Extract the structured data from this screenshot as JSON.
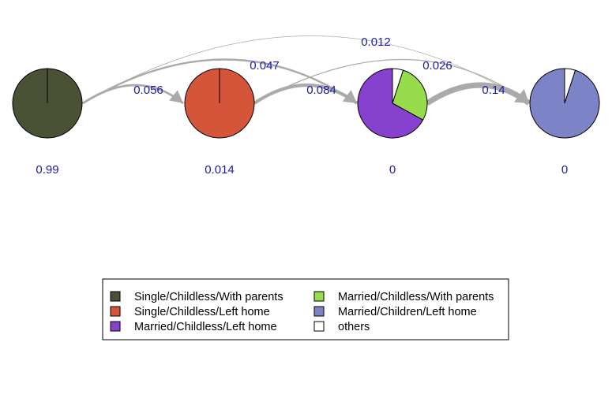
{
  "colors": {
    "single_childless_with_parents": "#4a5236",
    "single_childless_left_home": "#d5553b",
    "married_childless_left_home": "#8741cf",
    "married_childless_with_parents": "#96dc4c",
    "married_children_left_home": "#7d83c7",
    "others": "#ffffff",
    "edge": "#aaaaaa",
    "label": "#1a1aa6"
  },
  "nodes": [
    {
      "id": "n1",
      "stay_label": "0.99",
      "slices": [
        {
          "state": "Single/Childless/With parents",
          "share": 1.0,
          "color_key": "single_childless_with_parents"
        }
      ]
    },
    {
      "id": "n2",
      "stay_label": "0.014",
      "slices": [
        {
          "state": "Single/Childless/Left home",
          "share": 1.0,
          "color_key": "single_childless_left_home"
        }
      ]
    },
    {
      "id": "n3",
      "stay_label": "0",
      "slices": [
        {
          "state": "others",
          "share": 0.05,
          "color_key": "others"
        },
        {
          "state": "Married/Childless/With parents",
          "share": 0.28,
          "color_key": "married_childless_with_parents"
        },
        {
          "state": "Married/Childless/Left home",
          "share": 0.67,
          "color_key": "married_childless_left_home"
        }
      ]
    },
    {
      "id": "n4",
      "stay_label": "0",
      "slices": [
        {
          "state": "others",
          "share": 0.05,
          "color_key": "others"
        },
        {
          "state": "Married/Children/Left home",
          "share": 0.95,
          "color_key": "married_children_left_home"
        }
      ]
    }
  ],
  "edges": [
    {
      "from": "n1",
      "to": "n2",
      "label": "0.056",
      "weight": 0.056
    },
    {
      "from": "n1",
      "to": "n3",
      "label": "0.047",
      "weight": 0.047
    },
    {
      "from": "n1",
      "to": "n4",
      "label": "0.012",
      "weight": 0.012
    },
    {
      "from": "n2",
      "to": "n3",
      "label": "0.084",
      "weight": 0.084
    },
    {
      "from": "n2",
      "to": "n4",
      "label": "0.026",
      "weight": 0.026
    },
    {
      "from": "n3",
      "to": "n4",
      "label": "0.14",
      "weight": 0.14
    }
  ],
  "legend": {
    "items": [
      {
        "label": "Single/Childless/With parents",
        "color_key": "single_childless_with_parents"
      },
      {
        "label": "Married/Childless/With parents",
        "color_key": "married_childless_with_parents"
      },
      {
        "label": "Single/Childless/Left home",
        "color_key": "single_childless_left_home"
      },
      {
        "label": "Married/Children/Left home",
        "color_key": "married_children_left_home"
      },
      {
        "label": "Married/Childless/Left home",
        "color_key": "married_childless_left_home"
      },
      {
        "label": "others",
        "color_key": "others"
      }
    ]
  }
}
